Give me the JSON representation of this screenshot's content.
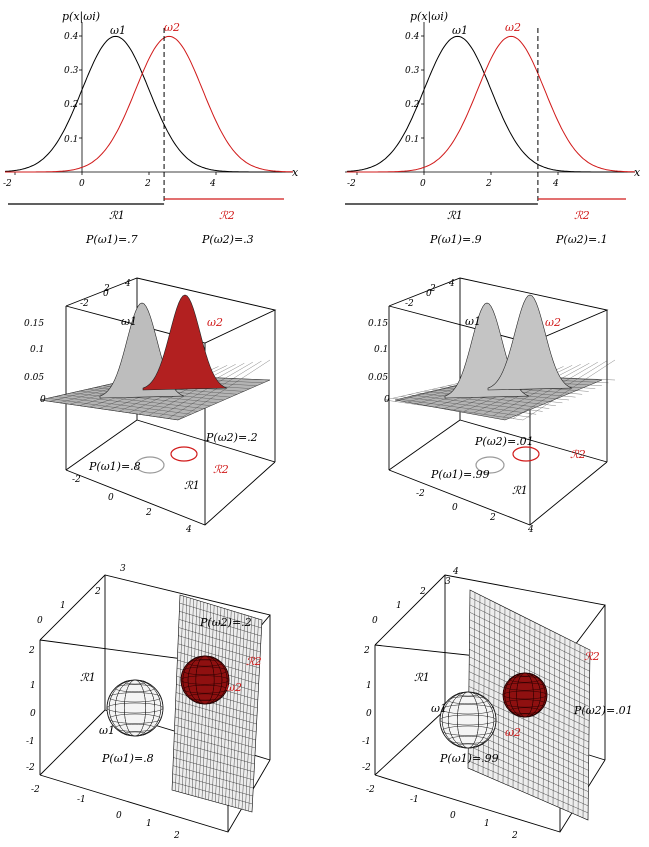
{
  "colors": {
    "class1": "#000000",
    "class2": "#d11a1a",
    "surface": "#c8c8c8"
  },
  "chart_data": [
    {
      "type": "line",
      "panel": "top-left",
      "ylabel": "p(x|ωi)",
      "xlabel": "x",
      "xlim": [
        -2.3,
        6.3
      ],
      "ylim": [
        0,
        0.42
      ],
      "xticks": [
        "-2",
        "0",
        "2",
        "4"
      ],
      "yticks": [
        "0.1",
        "0.2",
        "0.3",
        "0.4"
      ],
      "series": [
        {
          "name": "ω1",
          "mean": 1.0,
          "sd": 1.0
        },
        {
          "name": "ω2",
          "mean": 2.6,
          "sd": 1.0
        }
      ],
      "threshold_x": 2.45,
      "regions": [
        "ℛ1",
        "ℛ2"
      ],
      "priors": [
        "P(ω1)=.7",
        "P(ω2)=.3"
      ]
    },
    {
      "type": "line",
      "panel": "top-right",
      "ylabel": "p(x|ωi)",
      "xlabel": "x",
      "xlim": [
        -2.3,
        6.3
      ],
      "ylim": [
        0,
        0.42
      ],
      "xticks": [
        "-2",
        "0",
        "2",
        "4"
      ],
      "yticks": [
        "0.1",
        "0.2",
        "0.3",
        "0.4"
      ],
      "series": [
        {
          "name": "ω1",
          "mean": 1.0,
          "sd": 1.0
        },
        {
          "name": "ω2",
          "mean": 2.6,
          "sd": 1.0
        }
      ],
      "threshold_x": 3.4,
      "regions": [
        "ℛ1",
        "ℛ2"
      ],
      "priors": [
        "P(ω1)=.9",
        "P(ω2)=.1"
      ]
    },
    {
      "type": "surface",
      "panel": "middle-left",
      "zticks": [
        "0",
        "0.05",
        "0.1",
        "0.15"
      ],
      "xticks": [
        "-2",
        "0",
        "2",
        "4"
      ],
      "yticks": [
        "-2",
        "0",
        "2",
        "4"
      ],
      "classes": [
        "ω1",
        "ω2"
      ],
      "regions": [
        "ℛ1",
        "ℛ2"
      ],
      "priors": [
        "P(ω1)=.8",
        "P(ω2)=.2"
      ]
    },
    {
      "type": "surface",
      "panel": "middle-right",
      "zticks": [
        "0",
        "0.05",
        "0.1",
        "0.15"
      ],
      "xticks": [
        "-2",
        "0",
        "2",
        "4"
      ],
      "yticks": [
        "-2",
        "0",
        "2",
        "4"
      ],
      "classes": [
        "ω1",
        "ω2"
      ],
      "regions": [
        "ℛ1",
        "ℛ2"
      ],
      "priors": [
        "P(ω1)=.99",
        "P(ω2)=.01"
      ]
    },
    {
      "type": "3d-spheres",
      "panel": "bottom-left",
      "zticks": [
        "-2",
        "-1",
        "0",
        "1",
        "2"
      ],
      "xticks": [
        "-2",
        "-1",
        "0",
        "1",
        "2"
      ],
      "yticks": [
        "0",
        "1",
        "2",
        "3"
      ],
      "classes": [
        "ω1",
        "ω2"
      ],
      "regions": [
        "ℛ1",
        "ℛ2"
      ],
      "priors": [
        "P(ω1)=.8",
        "P(ω2)=.2"
      ]
    },
    {
      "type": "3d-spheres",
      "panel": "bottom-right",
      "zticks": [
        "-2",
        "-1",
        "0",
        "1",
        "2"
      ],
      "xticks": [
        "-2",
        "-1",
        "0",
        "1",
        "2"
      ],
      "yticks": [
        "0",
        "1",
        "2",
        "3",
        "4"
      ],
      "classes": [
        "ω1",
        "ω2"
      ],
      "regions": [
        "ℛ1",
        "ℛ2"
      ],
      "priors": [
        "P(ω1)=.99",
        "P(ω2)=.01"
      ]
    }
  ]
}
